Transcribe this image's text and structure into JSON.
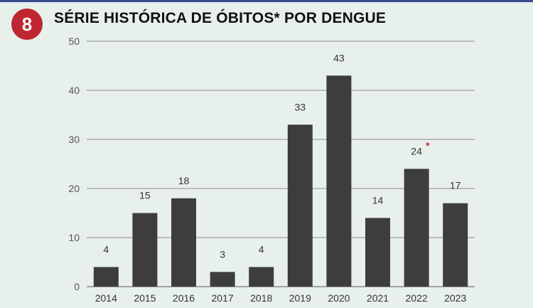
{
  "header": {
    "badge_number": "8",
    "title": "SÉRIE HISTÓRICA DE ÓBITOS* POR DENGUE"
  },
  "colors": {
    "bar": "#3d3d3d",
    "badge": "#c0262f",
    "background": "#e8f0ec",
    "grid": "#8a8a8a",
    "asterisk": "#d0262f"
  },
  "chart_data": {
    "type": "bar",
    "title": "SÉRIE HISTÓRICA DE ÓBITOS* POR DENGUE",
    "xlabel": "",
    "ylabel": "",
    "categories": [
      "2014",
      "2015",
      "2016",
      "2017",
      "2018",
      "2019",
      "2020",
      "2021",
      "2022",
      "2023"
    ],
    "values": [
      4,
      15,
      18,
      3,
      4,
      33,
      43,
      14,
      24,
      17
    ],
    "data_labels": [
      "4",
      "15",
      "18",
      "3",
      "4",
      "33",
      "43",
      "14",
      "24",
      "17"
    ],
    "annotations": [
      {
        "category": "2022",
        "mark": "*"
      }
    ],
    "ylim": [
      0,
      50
    ],
    "yticks": [
      "0",
      "10",
      "20",
      "30",
      "40",
      "50"
    ],
    "grid": true,
    "legend": "none"
  }
}
